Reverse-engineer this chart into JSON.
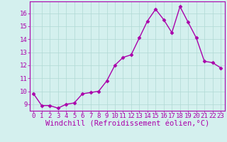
{
  "x": [
    0,
    1,
    2,
    3,
    4,
    5,
    6,
    7,
    8,
    9,
    10,
    11,
    12,
    13,
    14,
    15,
    16,
    17,
    18,
    19,
    20,
    21,
    22,
    23
  ],
  "y": [
    9.8,
    8.9,
    8.9,
    8.7,
    9.0,
    9.1,
    9.8,
    9.9,
    10.0,
    10.8,
    12.0,
    12.6,
    12.8,
    14.1,
    15.4,
    16.3,
    15.5,
    14.5,
    16.5,
    15.3,
    14.1,
    12.3,
    12.2,
    11.8
  ],
  "line_color": "#aa00aa",
  "marker": "D",
  "marker_size": 2.5,
  "xlabel": "Windchill (Refroidissement éolien,°C)",
  "xlabel_fontsize": 7.5,
  "ylabel_ticks": [
    9,
    10,
    11,
    12,
    13,
    14,
    15,
    16
  ],
  "xtick_labels": [
    "0",
    "1",
    "2",
    "3",
    "4",
    "5",
    "6",
    "7",
    "8",
    "9",
    "10",
    "11",
    "12",
    "13",
    "14",
    "15",
    "16",
    "17",
    "18",
    "19",
    "20",
    "21",
    "22",
    "23"
  ],
  "ylim": [
    8.5,
    16.9
  ],
  "xlim": [
    -0.5,
    23.5
  ],
  "background_color": "#d4f0ee",
  "grid_color": "#b0d8d4",
  "tick_color": "#aa00aa",
  "tick_fontsize": 6.5,
  "linewidth": 1.0
}
